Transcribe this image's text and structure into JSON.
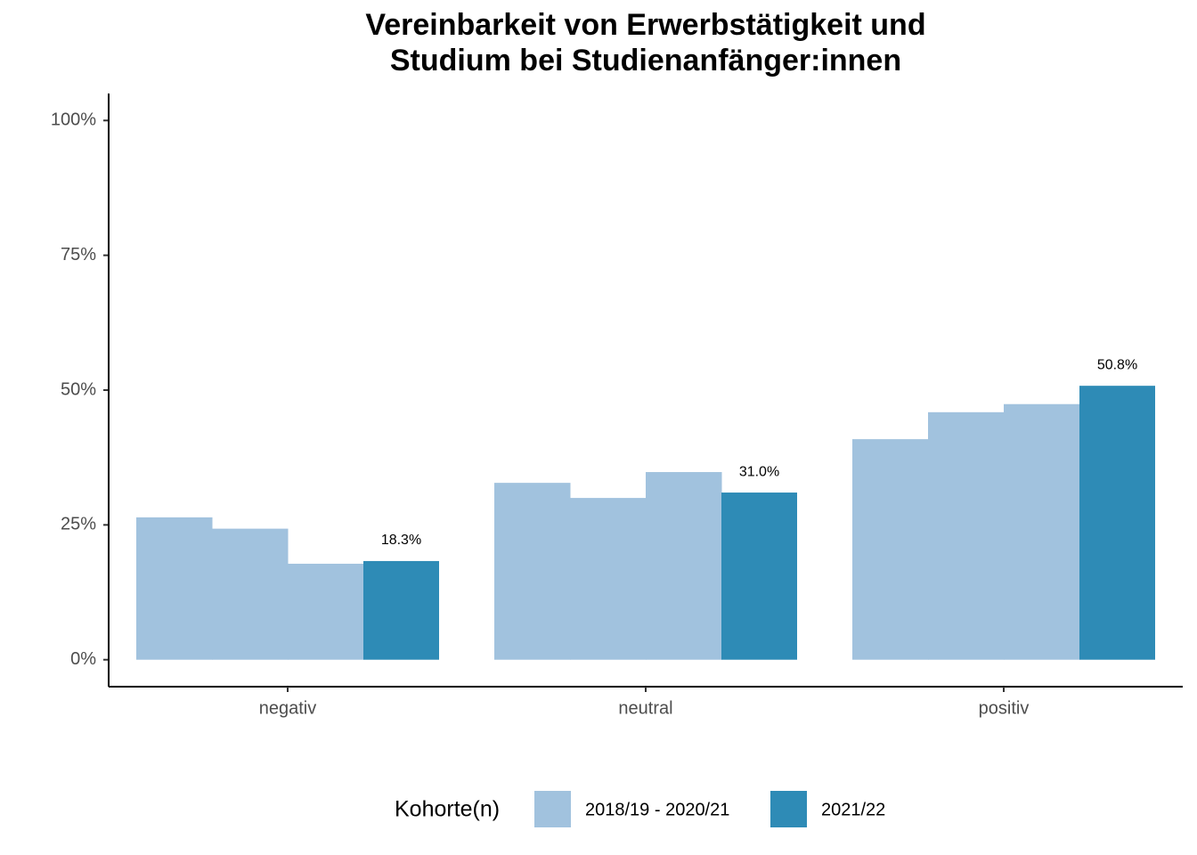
{
  "chart_data": {
    "type": "bar",
    "title": "Vereinbarkeit von Erwerbstätigkeit und",
    "subtitle": "Studium bei Studienanfänger:innen",
    "categories": [
      "negativ",
      "neutral",
      "positiv"
    ],
    "legend_title": "Kohorte(n)",
    "series": [
      {
        "name": "2018/19 - 2020/21",
        "color": "#a1c2de",
        "values": [
          [
            26.4,
            24.3,
            17.8
          ],
          [
            32.8,
            30.0,
            34.8
          ],
          [
            40.9,
            45.9,
            47.4
          ]
        ]
      },
      {
        "name": "2021/22",
        "color": "#2e8bb6",
        "values": [
          18.3,
          31.0,
          50.8
        ],
        "value_labels": [
          "18.3%",
          "31.0%",
          "50.8%"
        ]
      }
    ],
    "ylim": [
      -5,
      105
    ],
    "yticks": [
      {
        "value": 0,
        "label": "0%"
      },
      {
        "value": 25,
        "label": "25%"
      },
      {
        "value": 50,
        "label": "50%"
      },
      {
        "value": 75,
        "label": "75%"
      },
      {
        "value": 100,
        "label": "100%"
      }
    ],
    "grid": false,
    "legend": "bottom"
  }
}
